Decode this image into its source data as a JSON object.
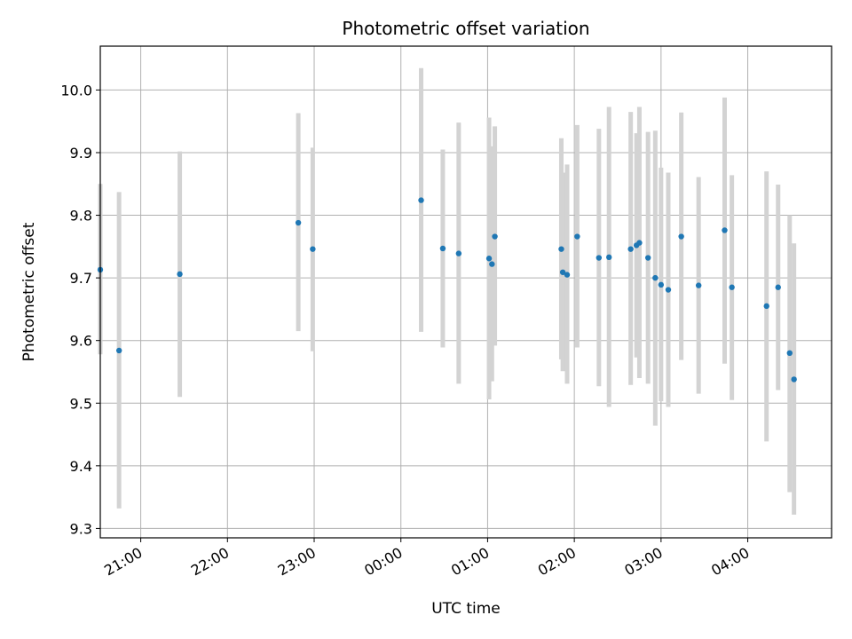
{
  "chart_data": {
    "type": "scatter",
    "title": "Photometric offset variation",
    "xlabel": "UTC time",
    "ylabel": "Photometric offset",
    "xlim": [
      "20:32",
      "04:58"
    ],
    "ylim": [
      9.285,
      10.07
    ],
    "x_ticks": [
      "21:00",
      "22:00",
      "23:00",
      "00:00",
      "01:00",
      "02:00",
      "03:00",
      "04:00"
    ],
    "y_ticks": [
      9.3,
      9.4,
      9.5,
      9.6,
      9.7,
      9.8,
      9.9,
      10.0
    ],
    "grid": true,
    "point_color": "#1f77b4",
    "errorbar_color": "#d3d3d3",
    "points": [
      {
        "t": "20:32",
        "y": 9.713,
        "lo": 9.578,
        "hi": 9.85
      },
      {
        "t": "20:45",
        "y": 9.584,
        "lo": 9.332,
        "hi": 9.837
      },
      {
        "t": "21:27",
        "y": 9.706,
        "lo": 9.51,
        "hi": 9.902
      },
      {
        "t": "22:49",
        "y": 9.788,
        "lo": 9.615,
        "hi": 9.963
      },
      {
        "t": "22:59",
        "y": 9.746,
        "lo": 9.583,
        "hi": 9.908
      },
      {
        "t": "00:14",
        "y": 9.824,
        "lo": 9.614,
        "hi": 10.035
      },
      {
        "t": "00:29",
        "y": 9.747,
        "lo": 9.589,
        "hi": 9.905
      },
      {
        "t": "00:40",
        "y": 9.739,
        "lo": 9.531,
        "hi": 9.948
      },
      {
        "t": "01:01",
        "y": 9.731,
        "lo": 9.506,
        "hi": 9.956
      },
      {
        "t": "01:03",
        "y": 9.722,
        "lo": 9.535,
        "hi": 9.91
      },
      {
        "t": "01:05",
        "y": 9.766,
        "lo": 9.592,
        "hi": 9.942
      },
      {
        "t": "01:51",
        "y": 9.746,
        "lo": 9.57,
        "hi": 9.923
      },
      {
        "t": "01:52",
        "y": 9.709,
        "lo": 9.551,
        "hi": 9.868
      },
      {
        "t": "01:55",
        "y": 9.705,
        "lo": 9.531,
        "hi": 9.881
      },
      {
        "t": "02:02",
        "y": 9.766,
        "lo": 9.589,
        "hi": 9.944
      },
      {
        "t": "02:17",
        "y": 9.732,
        "lo": 9.527,
        "hi": 9.938
      },
      {
        "t": "02:24",
        "y": 9.733,
        "lo": 9.494,
        "hi": 9.973
      },
      {
        "t": "02:39",
        "y": 9.746,
        "lo": 9.529,
        "hi": 9.965
      },
      {
        "t": "02:43",
        "y": 9.752,
        "lo": 9.573,
        "hi": 9.931
      },
      {
        "t": "02:45",
        "y": 9.756,
        "lo": 9.54,
        "hi": 9.973
      },
      {
        "t": "02:51",
        "y": 9.732,
        "lo": 9.531,
        "hi": 9.933
      },
      {
        "t": "02:56",
        "y": 9.7,
        "lo": 9.464,
        "hi": 9.935
      },
      {
        "t": "03:00",
        "y": 9.689,
        "lo": 9.503,
        "hi": 9.876
      },
      {
        "t": "03:05",
        "y": 9.681,
        "lo": 9.494,
        "hi": 9.868
      },
      {
        "t": "03:14",
        "y": 9.766,
        "lo": 9.569,
        "hi": 9.964
      },
      {
        "t": "03:26",
        "y": 9.688,
        "lo": 9.515,
        "hi": 9.861
      },
      {
        "t": "03:44",
        "y": 9.776,
        "lo": 9.563,
        "hi": 9.988
      },
      {
        "t": "03:49",
        "y": 9.685,
        "lo": 9.505,
        "hi": 9.864
      },
      {
        "t": "04:13",
        "y": 9.655,
        "lo": 9.439,
        "hi": 9.87
      },
      {
        "t": "04:21",
        "y": 9.685,
        "lo": 9.521,
        "hi": 9.849
      },
      {
        "t": "04:29",
        "y": 9.58,
        "lo": 9.358,
        "hi": 9.8
      },
      {
        "t": "04:32",
        "y": 9.538,
        "lo": 9.322,
        "hi": 9.755
      }
    ]
  }
}
